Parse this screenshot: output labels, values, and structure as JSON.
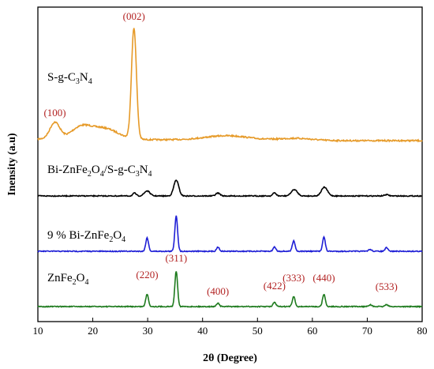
{
  "chart_data": {
    "type": "line",
    "xlabel": "2θ (Degree)",
    "ylabel": "Inensity (a.u)",
    "xlim": [
      10,
      80
    ],
    "x_ticks": [
      "10",
      "20",
      "30",
      "40",
      "50",
      "60",
      "70",
      "80"
    ],
    "y_ticks_shown": false,
    "grid": false,
    "legend": "inline labels",
    "series": [
      {
        "key": "sgcn",
        "color": "#e69a28",
        "label_parts": [
          {
            "t": "S-g-C"
          },
          {
            "t": "3",
            "sub": true
          },
          {
            "t": "N"
          },
          {
            "t": "4",
            "sub": true
          }
        ],
        "peaks": [
          {
            "x": 27.5,
            "h": 1.0,
            "w": 0.45
          },
          {
            "x": 13.1,
            "h": 0.15,
            "w": 0.9
          },
          {
            "x": 17.8,
            "h": 0.1,
            "w": 1.8
          },
          {
            "x": 22.0,
            "h": 0.1,
            "w": 2.5
          },
          {
            "x": 44.5,
            "h": 0.04,
            "w": 4.0
          },
          {
            "x": 57.0,
            "h": 0.02,
            "w": 3.0
          }
        ],
        "annotations": [
          {
            "text": "(002)",
            "x": 27.5
          },
          {
            "text": "(100)",
            "x": 13.1
          }
        ]
      },
      {
        "key": "composite",
        "color": "#000000",
        "label_parts": [
          {
            "t": "Bi-ZnFe"
          },
          {
            "t": "2",
            "sub": true
          },
          {
            "t": "O"
          },
          {
            "t": "4",
            "sub": true
          },
          {
            "t": "/S-g-C"
          },
          {
            "t": "3",
            "sub": true
          },
          {
            "t": "N"
          },
          {
            "t": "4",
            "sub": true
          }
        ],
        "peaks": [
          {
            "x": 35.2,
            "h": 1.0,
            "w": 0.45
          },
          {
            "x": 29.9,
            "h": 0.32,
            "w": 0.5
          },
          {
            "x": 27.6,
            "h": 0.18,
            "w": 0.3
          },
          {
            "x": 42.8,
            "h": 0.18,
            "w": 0.4
          },
          {
            "x": 53.1,
            "h": 0.2,
            "w": 0.3
          },
          {
            "x": 56.7,
            "h": 0.4,
            "w": 0.55
          },
          {
            "x": 62.2,
            "h": 0.55,
            "w": 0.55
          },
          {
            "x": 73.5,
            "h": 0.08,
            "w": 0.4
          }
        ],
        "annotations": []
      },
      {
        "key": "bi9",
        "color": "#1f1fd6",
        "label_parts": [
          {
            "t": "9 % Bi-ZnFe"
          },
          {
            "t": "2",
            "sub": true
          },
          {
            "t": "O"
          },
          {
            "t": "4",
            "sub": true
          }
        ],
        "peaks": [
          {
            "x": 35.2,
            "h": 1.0,
            "w": 0.25
          },
          {
            "x": 29.9,
            "h": 0.38,
            "w": 0.25
          },
          {
            "x": 42.8,
            "h": 0.12,
            "w": 0.25
          },
          {
            "x": 53.1,
            "h": 0.12,
            "w": 0.25
          },
          {
            "x": 56.6,
            "h": 0.3,
            "w": 0.25
          },
          {
            "x": 62.1,
            "h": 0.4,
            "w": 0.25
          },
          {
            "x": 70.5,
            "h": 0.05,
            "w": 0.3
          },
          {
            "x": 73.5,
            "h": 0.1,
            "w": 0.25
          }
        ],
        "annotations": []
      },
      {
        "key": "zfo",
        "color": "#1e7b1e",
        "label_parts": [
          {
            "t": "ZnFe"
          },
          {
            "t": "2",
            "sub": true
          },
          {
            "t": "O"
          },
          {
            "t": "4",
            "sub": true
          }
        ],
        "peaks": [
          {
            "x": 35.2,
            "h": 1.0,
            "w": 0.25
          },
          {
            "x": 29.9,
            "h": 0.35,
            "w": 0.25
          },
          {
            "x": 42.8,
            "h": 0.1,
            "w": 0.25
          },
          {
            "x": 53.1,
            "h": 0.12,
            "w": 0.25
          },
          {
            "x": 56.6,
            "h": 0.28,
            "w": 0.25
          },
          {
            "x": 62.1,
            "h": 0.35,
            "w": 0.25
          },
          {
            "x": 70.5,
            "h": 0.05,
            "w": 0.3
          },
          {
            "x": 73.5,
            "h": 0.06,
            "w": 0.25
          }
        ],
        "annotations": [
          {
            "text": "(220)",
            "x": 29.9
          },
          {
            "text": "(311)",
            "x": 35.2
          },
          {
            "text": "(400)",
            "x": 42.8
          },
          {
            "text": "(422)",
            "x": 53.1
          },
          {
            "text": "(333)",
            "x": 56.6
          },
          {
            "text": "(440)",
            "x": 62.1
          },
          {
            "text": "(533)",
            "x": 73.5
          }
        ]
      }
    ]
  }
}
